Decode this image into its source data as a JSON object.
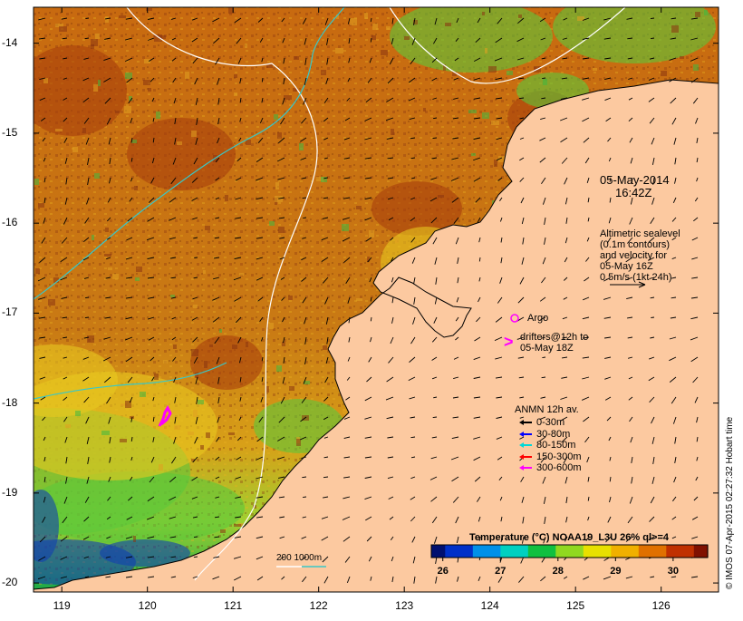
{
  "map": {
    "date": "05-May-2014",
    "time": "16:42Z",
    "altimetry_lines": [
      "Altimetric sealevel",
      "(0.1m contours)",
      "and velocity for",
      "05-May 16Z",
      "0.5m/s (1kt 24h)"
    ],
    "argo_label": "Argo",
    "drifters_lines": [
      "drifters@12h to",
      "05-May 18Z"
    ],
    "anmn": {
      "title": "ANMN 12h av.",
      "items": [
        {
          "label": "0-30m",
          "color": "#000000"
        },
        {
          "label": "30-80m",
          "color": "#0000ff"
        },
        {
          "label": "80-150m",
          "color": "#00d8d8"
        },
        {
          "label": "150-300m",
          "color": "#ff0000"
        },
        {
          "label": "300-600m",
          "color": "#ff00ff"
        }
      ]
    },
    "isobath_label": "200  1000m",
    "colorbar": {
      "title": "Temperature (°C) NOAA19_L3U 26% ql>=4",
      "ticks": [
        "26",
        "27",
        "28",
        "29",
        "30"
      ],
      "range": [
        25.8,
        30.6
      ],
      "colors": [
        "#001070",
        "#0030c8",
        "#0090e8",
        "#00d0c0",
        "#10c040",
        "#90d820",
        "#e8e000",
        "#f0b000",
        "#e07000",
        "#c03000",
        "#801000"
      ]
    },
    "y_ticks": [
      "-14",
      "-15",
      "-16",
      "-17",
      "-18",
      "-19",
      "-20"
    ],
    "x_ticks": [
      "119",
      "120",
      "121",
      "122",
      "123",
      "124",
      "125",
      "126"
    ],
    "lat_range": [
      -20.1,
      -13.6
    ],
    "lon_range": [
      118.67,
      126.67
    ],
    "side_note": "© IMOS 07-Apr-2015 02:27:32 Hobart time",
    "colors": {
      "land": "#fcc9a0",
      "warm_sea": "#d4780f",
      "hot_sea": "#a8400c",
      "cool_sea": "#5cc83a",
      "cold_sea": "#1040b0",
      "isobath_200": "#ffffff",
      "isobath_1000": "#38c8c8",
      "argo": "#ff00ff",
      "drifter": "#ff00ff"
    }
  }
}
